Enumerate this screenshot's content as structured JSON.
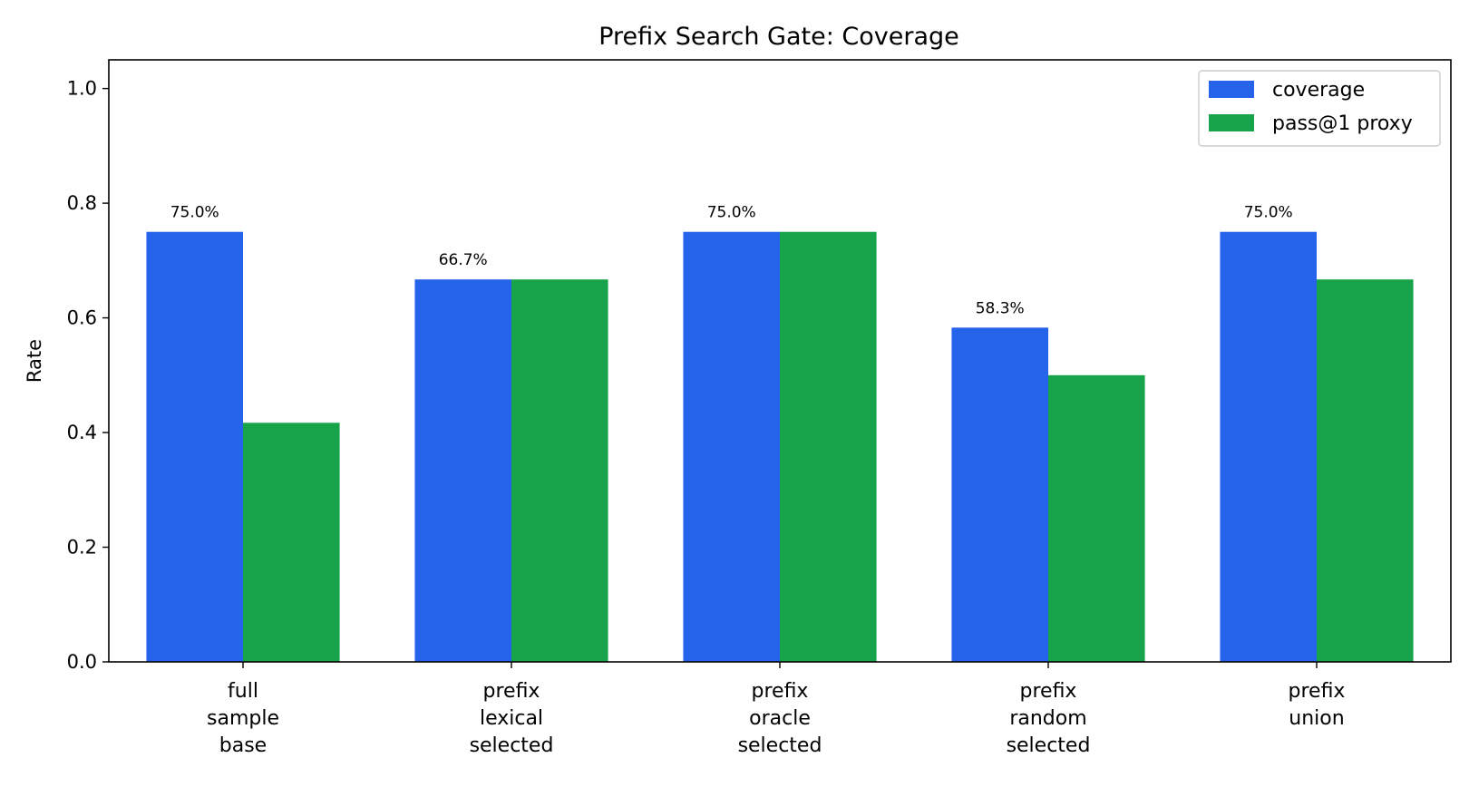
{
  "chart_data": {
    "type": "bar",
    "title": "Prefix Search Gate: Coverage",
    "xlabel": "",
    "ylabel": "Rate",
    "ylim": [
      0,
      1.05
    ],
    "yticks": [
      "0.0",
      "0.2",
      "0.4",
      "0.6",
      "0.8",
      "1.0"
    ],
    "categories": [
      [
        "full",
        "sample",
        "base"
      ],
      [
        "prefix",
        "lexical",
        "selected"
      ],
      [
        "prefix",
        "oracle",
        "selected"
      ],
      [
        "prefix",
        "random",
        "selected"
      ],
      [
        "prefix",
        "union"
      ]
    ],
    "series": [
      {
        "name": "coverage",
        "color": "#2563eb",
        "values": [
          0.75,
          0.667,
          0.75,
          0.583,
          0.75
        ],
        "labels": [
          "75.0%",
          "66.7%",
          "75.0%",
          "58.3%",
          "75.0%"
        ]
      },
      {
        "name": "pass@1 proxy",
        "color": "#16a34a",
        "values": [
          0.417,
          0.667,
          0.75,
          0.5,
          0.667
        ]
      }
    ],
    "legend_position": "top-right",
    "grid": false
  }
}
